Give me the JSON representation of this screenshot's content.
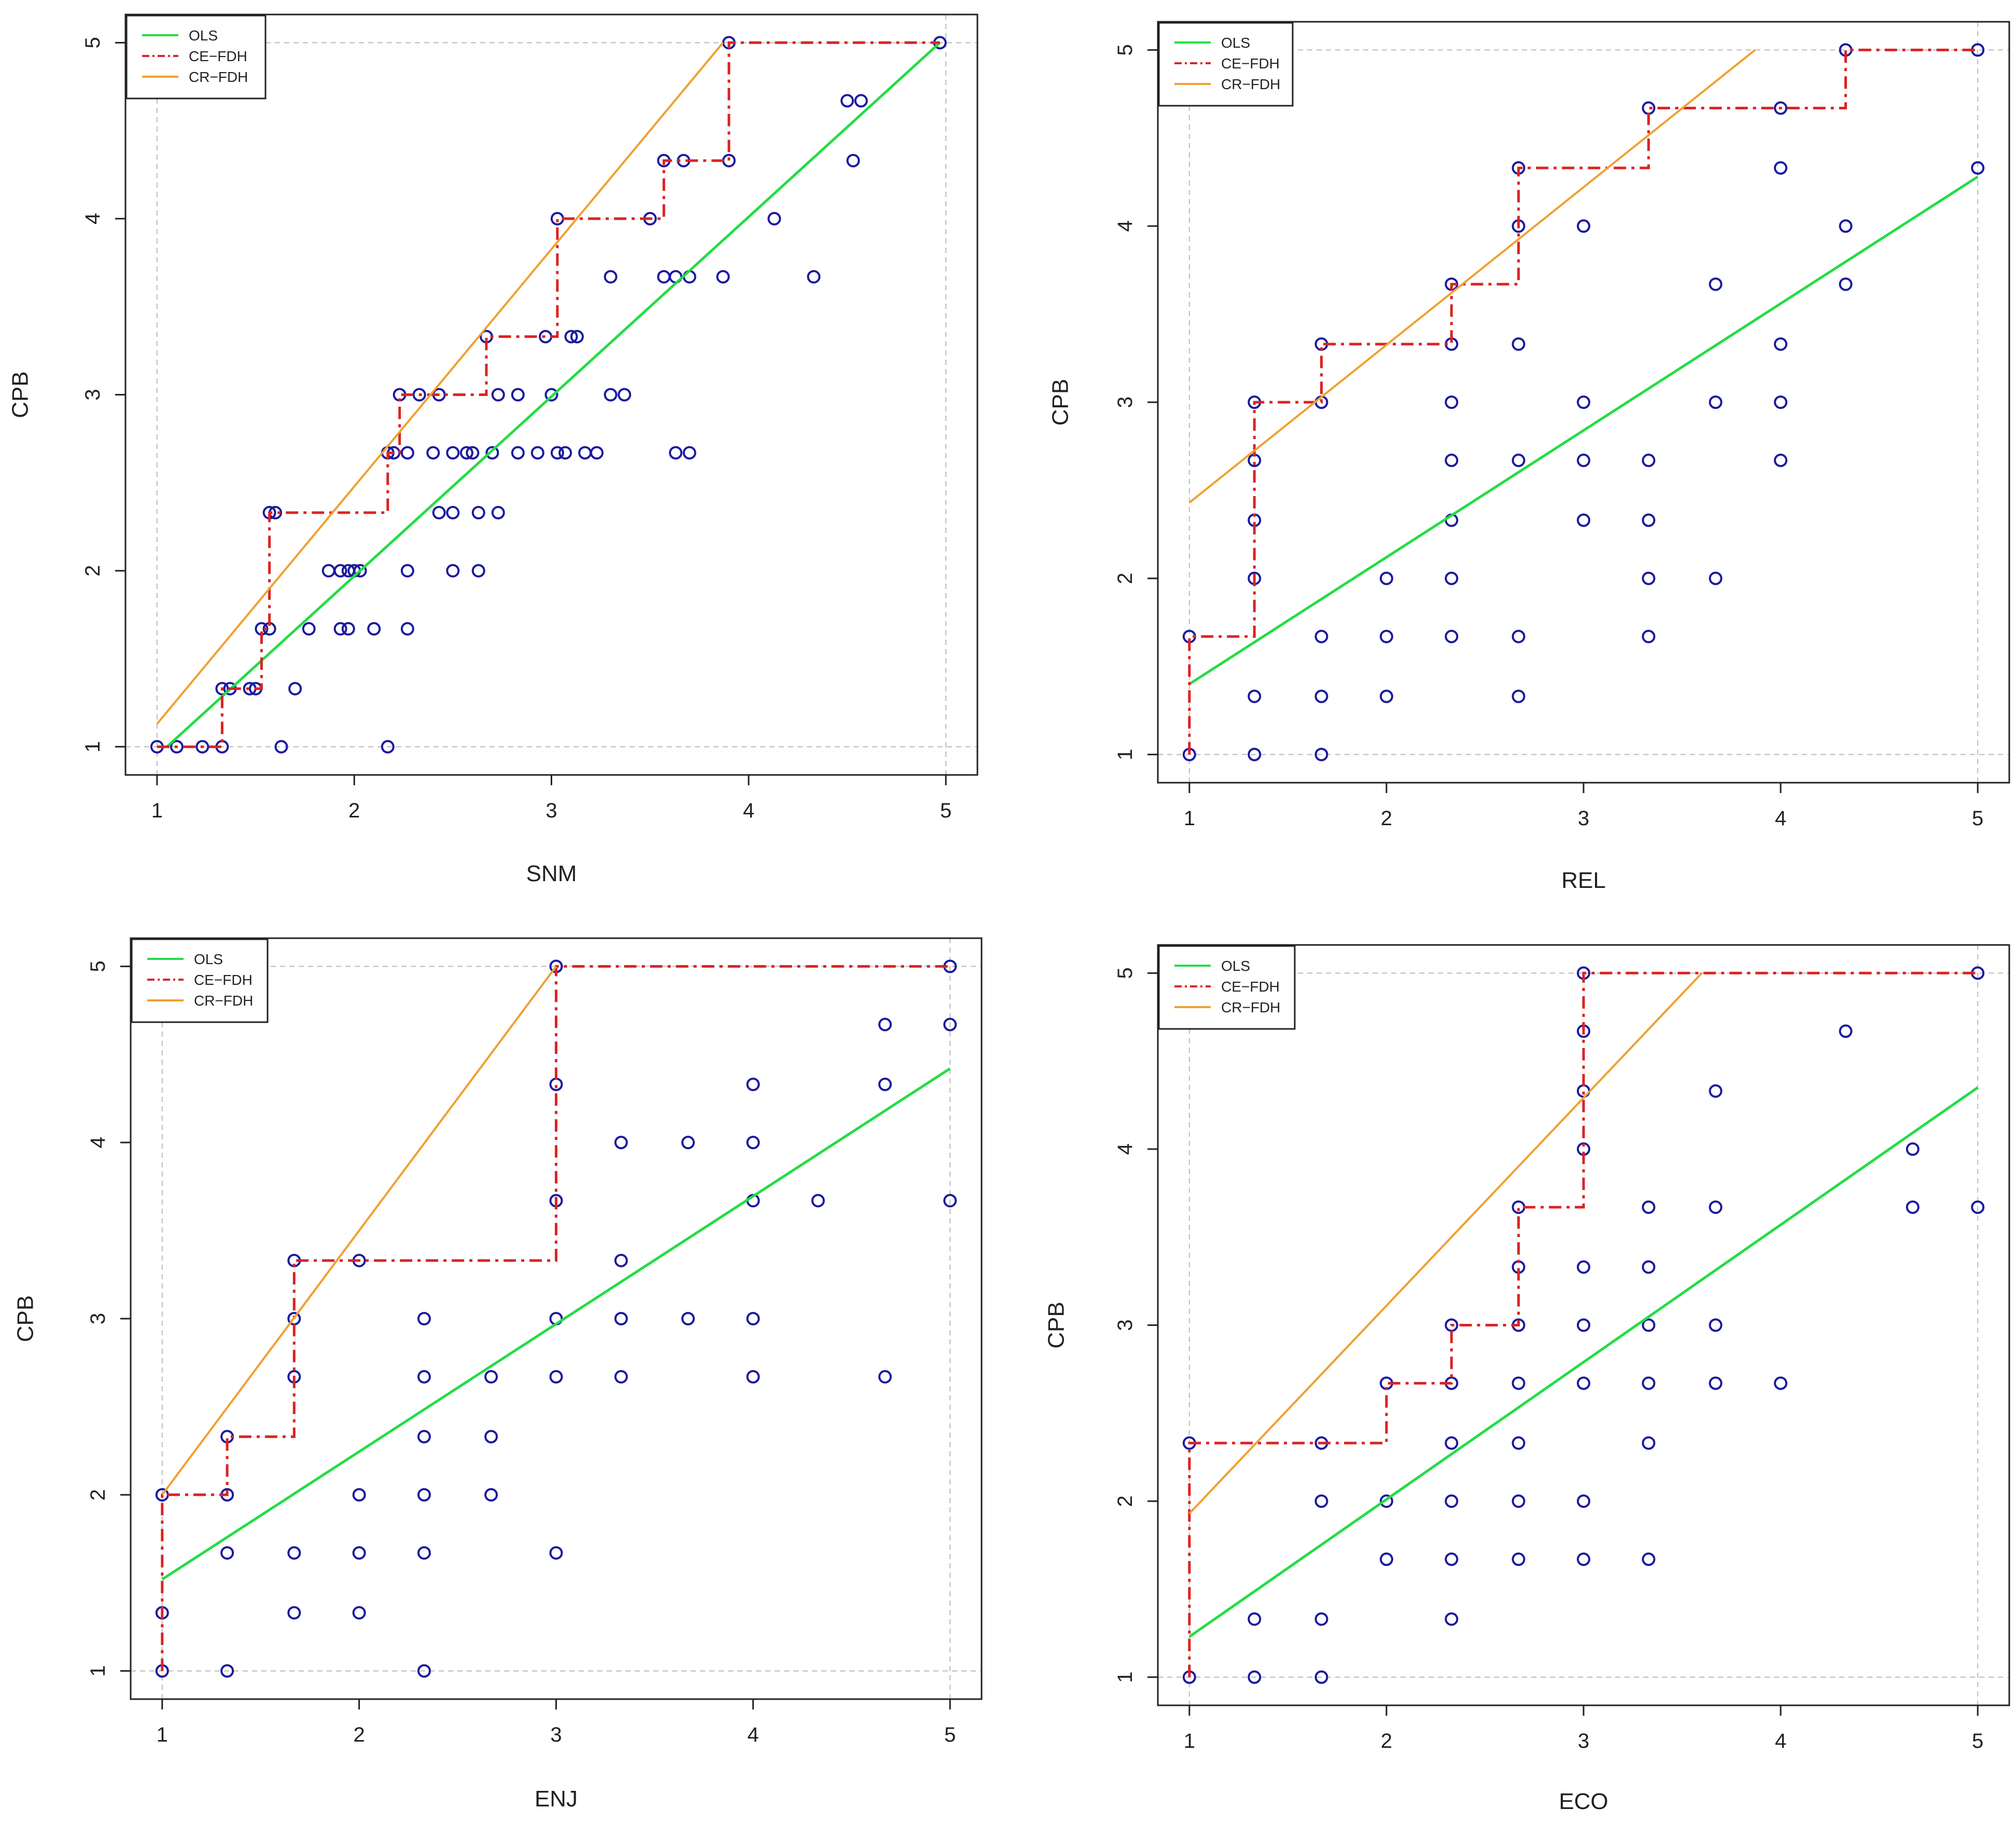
{
  "chart_data": [
    {
      "type": "scatter",
      "panel": "top-left",
      "xlabel": "SNM",
      "ylabel": "CPB",
      "xlim": [
        1,
        5
      ],
      "ylim": [
        1,
        5
      ],
      "xticks": [
        "1",
        "2",
        "3",
        "4",
        "5"
      ],
      "yticks": [
        "1",
        "2",
        "3",
        "4",
        "5"
      ],
      "grid": "dashed at x=1, x=5, y=1, y=5",
      "legend": {
        "position": "top-left",
        "entries": [
          "OLS",
          "CE−FDH",
          "CR−FDH"
        ]
      },
      "points": [
        [
          1,
          1
        ],
        [
          1.1,
          1
        ],
        [
          1.23,
          1
        ],
        [
          1.33,
          1
        ],
        [
          1.63,
          1
        ],
        [
          2.17,
          1
        ],
        [
          1.33,
          1.33
        ],
        [
          1.37,
          1.33
        ],
        [
          1.47,
          1.33
        ],
        [
          1.5,
          1.33
        ],
        [
          1.7,
          1.33
        ],
        [
          1.53,
          1.67
        ],
        [
          1.57,
          1.67
        ],
        [
          1.77,
          1.67
        ],
        [
          1.93,
          1.67
        ],
        [
          1.97,
          1.67
        ],
        [
          2.1,
          1.67
        ],
        [
          2.27,
          1.67
        ],
        [
          1.87,
          2
        ],
        [
          1.93,
          2
        ],
        [
          1.97,
          2
        ],
        [
          2,
          2
        ],
        [
          2.03,
          2
        ],
        [
          2.27,
          2
        ],
        [
          2.5,
          2
        ],
        [
          2.63,
          2
        ],
        [
          2.43,
          2.33
        ],
        [
          2.5,
          2.33
        ],
        [
          2.63,
          2.33
        ],
        [
          2.73,
          2.33
        ],
        [
          1.57,
          2.33
        ],
        [
          1.6,
          2.33
        ],
        [
          2.17,
          2.67
        ],
        [
          2.2,
          2.67
        ],
        [
          2.27,
          2.67
        ],
        [
          2.4,
          2.67
        ],
        [
          2.5,
          2.67
        ],
        [
          2.57,
          2.67
        ],
        [
          2.6,
          2.67
        ],
        [
          2.7,
          2.67
        ],
        [
          2.83,
          2.67
        ],
        [
          2.93,
          2.67
        ],
        [
          3.03,
          2.67
        ],
        [
          3.07,
          2.67
        ],
        [
          3.17,
          2.67
        ],
        [
          3.23,
          2.67
        ],
        [
          3.63,
          2.67
        ],
        [
          3.7,
          2.67
        ],
        [
          2.23,
          3
        ],
        [
          2.33,
          3
        ],
        [
          2.43,
          3
        ],
        [
          2.73,
          3
        ],
        [
          2.83,
          3
        ],
        [
          3,
          3
        ],
        [
          3.3,
          3
        ],
        [
          3.37,
          3
        ],
        [
          2.67,
          3.33
        ],
        [
          2.97,
          3.33
        ],
        [
          3.1,
          3.33
        ],
        [
          3.13,
          3.33
        ],
        [
          3.3,
          3.67
        ],
        [
          3.57,
          3.67
        ],
        [
          3.63,
          3.67
        ],
        [
          3.7,
          3.67
        ],
        [
          3.87,
          3.67
        ],
        [
          4.33,
          3.67
        ],
        [
          3.03,
          4
        ],
        [
          3.5,
          4
        ],
        [
          4.13,
          4
        ],
        [
          3.57,
          4.33
        ],
        [
          3.67,
          4.33
        ],
        [
          3.9,
          4.33
        ],
        [
          4.53,
          4.33
        ],
        [
          4.5,
          4.67
        ],
        [
          4.57,
          4.67
        ],
        [
          3.9,
          5
        ],
        [
          4.97,
          5
        ]
      ],
      "series": [
        {
          "name": "OLS",
          "x": [
            1.05,
            4.97
          ],
          "y": [
            1,
            5
          ]
        },
        {
          "name": "CE−FDH",
          "x": [
            1,
            1.33,
            1.33,
            1.53,
            1.53,
            1.57,
            1.57,
            2.17,
            2.17,
            2.23,
            2.23,
            2.67,
            2.67,
            3.03,
            3.03,
            3.57,
            3.57,
            3.9,
            3.9,
            4.97
          ],
          "y": [
            1,
            1,
            1.33,
            1.33,
            1.67,
            1.67,
            2.33,
            2.33,
            2.67,
            2.67,
            3,
            3,
            3.33,
            3.33,
            4,
            4,
            4.33,
            4.33,
            5,
            5
          ]
        },
        {
          "name": "CR−FDH",
          "x": [
            1,
            3.87
          ],
          "y": [
            1.13,
            5
          ]
        }
      ]
    },
    {
      "type": "scatter",
      "panel": "top-right",
      "xlabel": "REL",
      "ylabel": "CPB",
      "xlim": [
        1,
        5
      ],
      "ylim": [
        1,
        5
      ],
      "xticks": [
        "1",
        "2",
        "3",
        "4",
        "5"
      ],
      "yticks": [
        "1",
        "2",
        "3",
        "4",
        "5"
      ],
      "grid": "dashed at x=1, x=5, y=1, y=5",
      "legend": {
        "position": "top-left",
        "entries": [
          "OLS",
          "CE−FDH",
          "CR−FDH"
        ]
      },
      "points": [
        [
          1,
          1
        ],
        [
          1.33,
          1
        ],
        [
          1.67,
          1
        ],
        [
          1,
          1.67
        ],
        [
          1.33,
          1.33
        ],
        [
          1.67,
          1.33
        ],
        [
          2,
          1.33
        ],
        [
          2.67,
          1.33
        ],
        [
          1.67,
          1.67
        ],
        [
          2,
          1.67
        ],
        [
          2.33,
          1.67
        ],
        [
          2.67,
          1.67
        ],
        [
          3.33,
          1.67
        ],
        [
          1.33,
          2
        ],
        [
          2,
          2
        ],
        [
          2.33,
          2
        ],
        [
          3.33,
          2
        ],
        [
          3.67,
          2
        ],
        [
          1.33,
          2.33
        ],
        [
          2.33,
          2.33
        ],
        [
          3,
          2.33
        ],
        [
          3.33,
          2.33
        ],
        [
          1.33,
          2.67
        ],
        [
          2.33,
          2.67
        ],
        [
          2.67,
          2.67
        ],
        [
          3,
          2.67
        ],
        [
          3.33,
          2.67
        ],
        [
          4,
          2.67
        ],
        [
          1.33,
          3
        ],
        [
          1.67,
          3
        ],
        [
          2.33,
          3
        ],
        [
          3,
          3
        ],
        [
          3.67,
          3
        ],
        [
          4,
          3
        ],
        [
          1.67,
          3.33
        ],
        [
          2.33,
          3.33
        ],
        [
          2.67,
          3.33
        ],
        [
          4,
          3.33
        ],
        [
          2.33,
          3.67
        ],
        [
          3.67,
          3.67
        ],
        [
          4.33,
          3.67
        ],
        [
          2.67,
          4
        ],
        [
          3,
          4
        ],
        [
          4.33,
          4
        ],
        [
          2.67,
          4.33
        ],
        [
          4,
          4.33
        ],
        [
          5,
          4.33
        ],
        [
          3.33,
          4.67
        ],
        [
          4,
          4.67
        ],
        [
          4.33,
          5
        ],
        [
          5,
          5
        ]
      ],
      "series": [
        {
          "name": "OLS",
          "x": [
            1,
            5
          ],
          "y": [
            1.4,
            4.28
          ]
        },
        {
          "name": "CE−FDH",
          "x": [
            1,
            1,
            1.33,
            1.33,
            1.67,
            1.67,
            2.33,
            2.33,
            2.67,
            2.67,
            3.33,
            3.33,
            4.33,
            4.33,
            5
          ],
          "y": [
            1,
            1.67,
            1.67,
            3,
            3,
            3.33,
            3.33,
            3.67,
            3.67,
            4.33,
            4.33,
            4.67,
            4.67,
            5,
            5
          ]
        },
        {
          "name": "CR−FDH",
          "x": [
            1,
            3.87
          ],
          "y": [
            2.43,
            5
          ]
        }
      ]
    },
    {
      "type": "scatter",
      "panel": "bottom-left",
      "xlabel": "ENJ",
      "ylabel": "CPB",
      "xlim": [
        1,
        5
      ],
      "ylim": [
        1,
        5
      ],
      "xticks": [
        "1",
        "2",
        "3",
        "4",
        "5"
      ],
      "yticks": [
        "1",
        "2",
        "3",
        "4",
        "5"
      ],
      "grid": "dashed at x=1, x=5, y=1, y=5",
      "legend": {
        "position": "top-left",
        "entries": [
          "OLS",
          "CE−FDH",
          "CR−FDH"
        ]
      },
      "points": [
        [
          1,
          1
        ],
        [
          1.33,
          1
        ],
        [
          2.33,
          1
        ],
        [
          1,
          1.33
        ],
        [
          1.67,
          1.33
        ],
        [
          2,
          1.33
        ],
        [
          1.33,
          1.67
        ],
        [
          1.67,
          1.67
        ],
        [
          2,
          1.67
        ],
        [
          2.33,
          1.67
        ],
        [
          3,
          1.67
        ],
        [
          1,
          2
        ],
        [
          1.33,
          2
        ],
        [
          2,
          2
        ],
        [
          2.33,
          2
        ],
        [
          2.67,
          2
        ],
        [
          1.33,
          2.33
        ],
        [
          2.33,
          2.33
        ],
        [
          2.67,
          2.33
        ],
        [
          1.67,
          2.67
        ],
        [
          2.33,
          2.67
        ],
        [
          2.67,
          2.67
        ],
        [
          3,
          2.67
        ],
        [
          3.33,
          2.67
        ],
        [
          4,
          2.67
        ],
        [
          4.67,
          2.67
        ],
        [
          1.67,
          3
        ],
        [
          2.33,
          3
        ],
        [
          3,
          3
        ],
        [
          3.33,
          3
        ],
        [
          3.67,
          3
        ],
        [
          4,
          3
        ],
        [
          1.67,
          3.33
        ],
        [
          2,
          3.33
        ],
        [
          3.33,
          3.33
        ],
        [
          3,
          3.67
        ],
        [
          4,
          3.67
        ],
        [
          4.33,
          3.67
        ],
        [
          5,
          3.67
        ],
        [
          3.33,
          4
        ],
        [
          3.67,
          4
        ],
        [
          4,
          4
        ],
        [
          3,
          4.33
        ],
        [
          4,
          4.33
        ],
        [
          4.67,
          4.33
        ],
        [
          4.67,
          4.67
        ],
        [
          5,
          4.67
        ],
        [
          3,
          5
        ],
        [
          5,
          5
        ]
      ],
      "series": [
        {
          "name": "OLS",
          "x": [
            1,
            5
          ],
          "y": [
            1.52,
            4.42
          ]
        },
        {
          "name": "CE−FDH",
          "x": [
            1,
            1,
            1.33,
            1.33,
            1.67,
            1.67,
            3,
            3,
            5
          ],
          "y": [
            1,
            2,
            2,
            2.33,
            2.33,
            3.33,
            3.33,
            5,
            5
          ]
        },
        {
          "name": "CR−FDH",
          "x": [
            1,
            3
          ],
          "y": [
            2,
            5
          ]
        }
      ]
    },
    {
      "type": "scatter",
      "panel": "bottom-right",
      "xlabel": "ECO",
      "ylabel": "CPB",
      "xlim": [
        1,
        5
      ],
      "ylim": [
        1,
        5
      ],
      "xticks": [
        "1",
        "2",
        "3",
        "4",
        "5"
      ],
      "yticks": [
        "1",
        "2",
        "3",
        "4",
        "5"
      ],
      "grid": "dashed at x=1, x=5, y=1, y=5",
      "legend": {
        "position": "top-left",
        "entries": [
          "OLS",
          "CE−FDH",
          "CR−FDH"
        ]
      },
      "points": [
        [
          1,
          1
        ],
        [
          1.33,
          1
        ],
        [
          1.67,
          1
        ],
        [
          1.33,
          1.33
        ],
        [
          1.67,
          1.33
        ],
        [
          2.33,
          1.33
        ],
        [
          2,
          1.67
        ],
        [
          2.33,
          1.67
        ],
        [
          2.67,
          1.67
        ],
        [
          3,
          1.67
        ],
        [
          3.33,
          1.67
        ],
        [
          1.67,
          2
        ],
        [
          2,
          2
        ],
        [
          2.33,
          2
        ],
        [
          2.67,
          2
        ],
        [
          3,
          2
        ],
        [
          1,
          2.33
        ],
        [
          1.67,
          2.33
        ],
        [
          2.33,
          2.33
        ],
        [
          2.67,
          2.33
        ],
        [
          3.33,
          2.33
        ],
        [
          2,
          2.67
        ],
        [
          2.33,
          2.67
        ],
        [
          2.67,
          2.67
        ],
        [
          3,
          2.67
        ],
        [
          3.33,
          2.67
        ],
        [
          3.67,
          2.67
        ],
        [
          4,
          2.67
        ],
        [
          2.33,
          3
        ],
        [
          2.67,
          3
        ],
        [
          3,
          3
        ],
        [
          3.33,
          3
        ],
        [
          3.67,
          3
        ],
        [
          2.67,
          3.33
        ],
        [
          3,
          3.33
        ],
        [
          3.33,
          3.33
        ],
        [
          2.67,
          3.67
        ],
        [
          3.33,
          3.67
        ],
        [
          3.67,
          3.67
        ],
        [
          4.67,
          3.67
        ],
        [
          5,
          3.67
        ],
        [
          3,
          4
        ],
        [
          4.67,
          4
        ],
        [
          3,
          4.33
        ],
        [
          3.67,
          4.33
        ],
        [
          3,
          4.67
        ],
        [
          4.33,
          4.67
        ],
        [
          3,
          5
        ],
        [
          5,
          5
        ]
      ],
      "series": [
        {
          "name": "OLS",
          "x": [
            1,
            5
          ],
          "y": [
            1.23,
            4.35
          ]
        },
        {
          "name": "CE−FDH",
          "x": [
            1,
            1,
            2,
            2,
            2.33,
            2.33,
            2.67,
            2.67,
            3,
            3,
            5
          ],
          "y": [
            1,
            2.33,
            2.33,
            2.67,
            2.67,
            3,
            3,
            3.67,
            3.67,
            5,
            5
          ]
        },
        {
          "name": "CR−FDH",
          "x": [
            1,
            3.6
          ],
          "y": [
            1.93,
            5
          ]
        }
      ]
    }
  ],
  "colors": {
    "ols": "#22dd44",
    "ce_fdh": "#dd2222",
    "cr_fdh": "#f0a030",
    "points": "#1a1aa0",
    "grid": "#bbbbbb",
    "frame": "#222222"
  }
}
